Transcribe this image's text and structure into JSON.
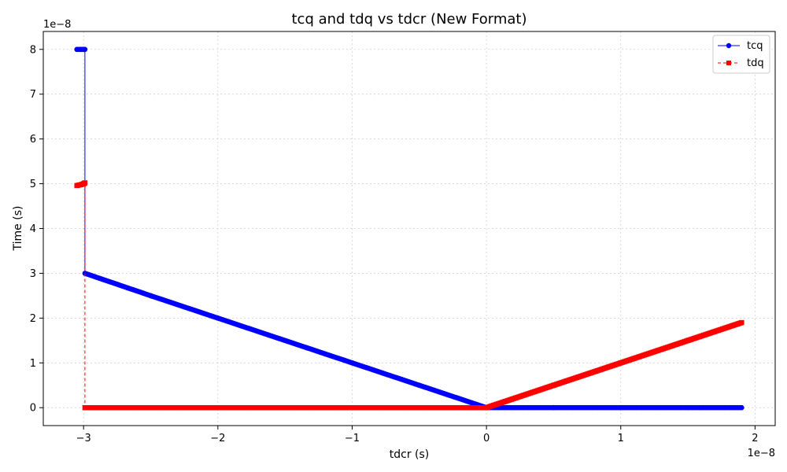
{
  "chart_data": {
    "type": "line",
    "title": "tcq and tdq vs tdcr (New Format)",
    "xlabel": "tdcr (s)",
    "ylabel": "Time (s)",
    "x_offset_label": "1e−8",
    "y_offset_label": "1e−8",
    "xlim": [
      -3.3,
      2.15
    ],
    "ylim": [
      -0.4,
      8.4
    ],
    "xticks": [
      {
        "value": -3,
        "label": "−3"
      },
      {
        "value": -2,
        "label": "−2"
      },
      {
        "value": -1,
        "label": "−1"
      },
      {
        "value": 0,
        "label": "0"
      },
      {
        "value": 1,
        "label": "1"
      },
      {
        "value": 2,
        "label": "2"
      }
    ],
    "yticks": [
      {
        "value": 0,
        "label": "0"
      },
      {
        "value": 1,
        "label": "1"
      },
      {
        "value": 2,
        "label": "2"
      },
      {
        "value": 3,
        "label": "3"
      },
      {
        "value": 4,
        "label": "4"
      },
      {
        "value": 5,
        "label": "5"
      },
      {
        "value": 6,
        "label": "6"
      },
      {
        "value": 7,
        "label": "7"
      },
      {
        "value": 8,
        "label": "8"
      }
    ],
    "grid": true,
    "legend_position": "top-right",
    "series": [
      {
        "name": "tcq",
        "color": "#0000ff",
        "linestyle": "solid",
        "marker": "circle",
        "points": [
          [
            -3.05,
            8.0
          ],
          [
            -3.02,
            8.0
          ],
          [
            -3.0,
            8.0
          ],
          [
            -2.99,
            8.0
          ],
          [
            -2.99,
            3.0
          ],
          [
            -2.5,
            2.5
          ],
          [
            -2.0,
            2.0
          ],
          [
            -1.5,
            1.5
          ],
          [
            -1.0,
            1.0
          ],
          [
            -0.5,
            0.5
          ],
          [
            0.0,
            0.0
          ],
          [
            0.5,
            0.0
          ],
          [
            1.0,
            0.0
          ],
          [
            1.5,
            0.0
          ],
          [
            1.9,
            0.0
          ]
        ]
      },
      {
        "name": "tdq",
        "color": "#ff0000",
        "linestyle": "dashed",
        "marker": "square",
        "points": [
          [
            -3.05,
            4.96
          ],
          [
            -3.02,
            4.98
          ],
          [
            -3.0,
            5.0
          ],
          [
            -2.99,
            5.02
          ],
          [
            -2.99,
            0.0
          ],
          [
            -2.5,
            0.0
          ],
          [
            -2.0,
            0.0
          ],
          [
            -1.5,
            0.0
          ],
          [
            -1.0,
            0.0
          ],
          [
            -0.5,
            0.0
          ],
          [
            0.0,
            0.0
          ],
          [
            0.5,
            0.5
          ],
          [
            1.0,
            1.0
          ],
          [
            1.5,
            1.5
          ],
          [
            1.9,
            1.9
          ]
        ]
      }
    ]
  }
}
